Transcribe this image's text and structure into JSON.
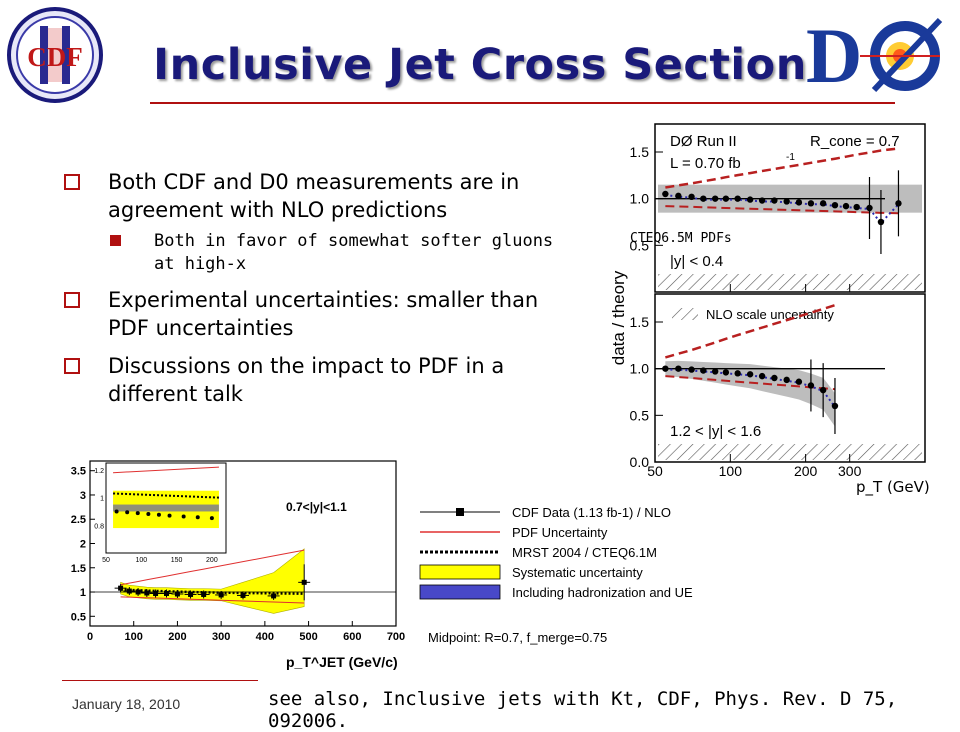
{
  "slide": {
    "title": "Inclusive Jet Cross Section",
    "logos": {
      "left": "CDF II",
      "right": "DØ"
    },
    "bullets": [
      {
        "text": "Both CDF and D0 measurements are in agreement with NLO predictions",
        "sub": [
          "Both in favor of somewhat softer gluons at high-x"
        ]
      },
      {
        "text": "Experimental uncertainties: smaller than PDF uncertainties",
        "sub": []
      },
      {
        "text": "Discussions on the impact to PDF in a different talk",
        "sub": []
      }
    ],
    "footer": {
      "date": "January 18, 2010",
      "reference": "see also, Inclusive jets with Kt, CDF, Phys. Rev. D 75, 092006."
    },
    "colors": {
      "title": "#1a1a7a",
      "accent": "#b01010"
    }
  },
  "chart_data": [
    {
      "type": "scatter",
      "name": "D0 data/theory",
      "ylabel": "data / theory",
      "xlabel": "p_T (GeV)",
      "xscale": "log",
      "xlim": [
        50,
        600
      ],
      "x_ticks": [
        50,
        100,
        200,
        300
      ],
      "panels": [
        {
          "header": "DØ Run II",
          "header_right": "R_cone = 0.7",
          "lumi": "L = 0.70 fb",
          "pdf_label": "CTEQ6.5M PDFs",
          "rapidity": "|y| < 0.4",
          "ylim": [
            0,
            1.8
          ],
          "y_ticks": [
            0.5,
            1.0,
            1.5
          ],
          "x": [
            55,
            62,
            70,
            78,
            87,
            96,
            107,
            120,
            134,
            150,
            168,
            188,
            210,
            235,
            262,
            290,
            320,
            360,
            400,
            470
          ],
          "y": [
            1.05,
            1.03,
            1.02,
            1.0,
            1.0,
            1.0,
            1.0,
            0.99,
            0.98,
            0.98,
            0.97,
            0.96,
            0.95,
            0.95,
            0.93,
            0.92,
            0.91,
            0.9,
            0.75,
            0.95
          ],
          "band_low": 0.85,
          "band_high": 1.15
        },
        {
          "legend_label": "NLO scale uncertainty",
          "rapidity": "1.2 < |y| < 1.6",
          "ylim": [
            0,
            1.8
          ],
          "y_ticks": [
            0.0,
            0.5,
            1.0,
            1.5
          ],
          "x": [
            55,
            62,
            70,
            78,
            87,
            96,
            107,
            120,
            134,
            150,
            168,
            188,
            210,
            235,
            262
          ],
          "y": [
            1.0,
            1.0,
            0.99,
            0.98,
            0.97,
            0.96,
            0.95,
            0.94,
            0.92,
            0.9,
            0.88,
            0.86,
            0.82,
            0.77,
            0.6
          ]
        }
      ]
    },
    {
      "type": "scatter",
      "name": "CDF Data / NLO",
      "xlabel": "p_T^JET (GeV/c)",
      "xlim": [
        0,
        700
      ],
      "ylim": [
        0.3,
        3.7
      ],
      "x_ticks": [
        0,
        100,
        200,
        300,
        400,
        500,
        600,
        700
      ],
      "y_ticks": [
        0.5,
        1,
        1.5,
        2,
        2.5,
        3,
        3.5
      ],
      "rapidity_label": "0.7<|y|<1.1",
      "x": [
        70,
        90,
        110,
        130,
        150,
        175,
        200,
        230,
        260,
        300,
        350,
        420,
        490
      ],
      "y": [
        1.08,
        1.02,
        1.0,
        0.98,
        0.97,
        0.97,
        0.96,
        0.95,
        0.95,
        0.94,
        0.93,
        0.92,
        1.2
      ],
      "inset": {
        "xlim": [
          50,
          220
        ],
        "ylim": [
          0.6,
          1.25
        ],
        "y_ticks": [
          0.8,
          1,
          1.2
        ],
        "x_ticks": [
          50,
          100,
          150,
          200
        ]
      },
      "legend": [
        "CDF Data (1.13 fb-1) / NLO",
        "PDF Uncertainty",
        "MRST 2004 / CTEQ6.1M",
        "Systematic uncertainty",
        "Including hadronization and UE"
      ],
      "legend_colors": [
        "#000000",
        "#e03030",
        "#000000",
        "#ffff00",
        "#4848c8"
      ],
      "note": "Midpoint: R=0.7, f_merge=0.75"
    }
  ]
}
